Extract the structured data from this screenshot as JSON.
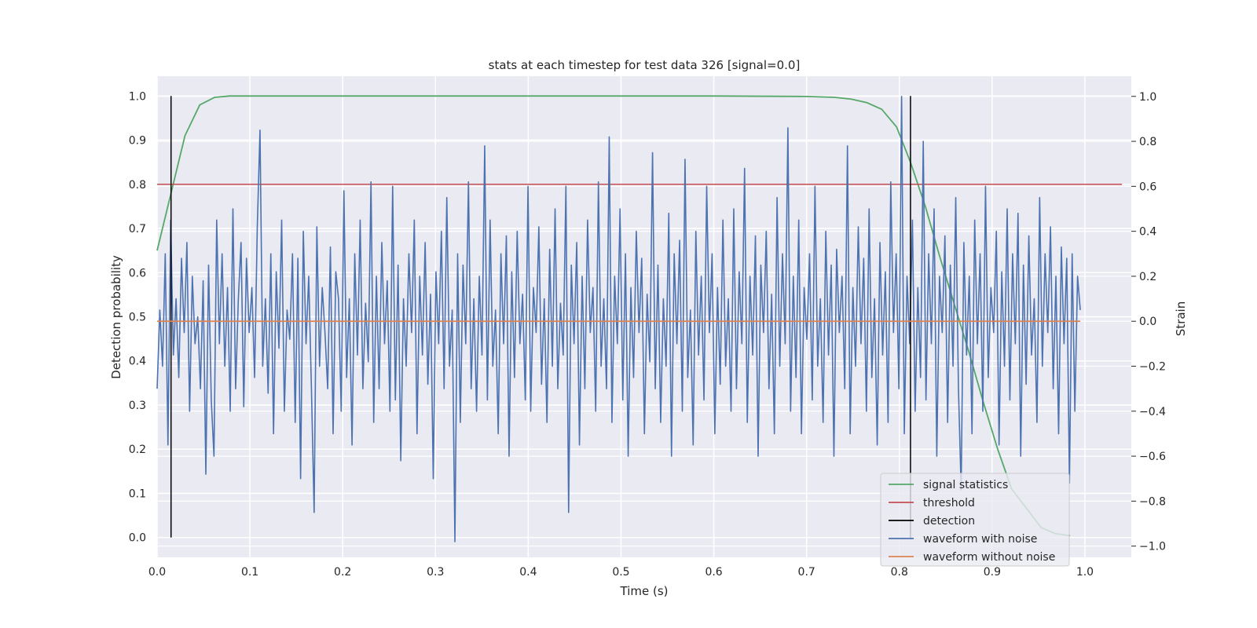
{
  "chart_data": {
    "type": "line",
    "title": "stats at each timestep for test data 326 [signal=0.0]",
    "xlabel": "Time (s)",
    "ylabel": "Detection probability",
    "y2label": "Strain",
    "xlim": [
      0.0,
      1.05
    ],
    "ylim": [
      -0.045,
      1.045
    ],
    "y2lim": [
      -1.05,
      1.09
    ],
    "xticks": [
      "0.0",
      "0.1",
      "0.2",
      "0.3",
      "0.4",
      "0.5",
      "0.6",
      "0.7",
      "0.8",
      "0.9",
      "1.0"
    ],
    "yticks": [
      "0.0",
      "0.1",
      "0.2",
      "0.3",
      "0.4",
      "0.5",
      "0.6",
      "0.7",
      "0.8",
      "0.9",
      "1.0"
    ],
    "y2ticks": [
      "−1.0",
      "−0.8",
      "−0.6",
      "−0.4",
      "−0.2",
      "0.0",
      "0.2",
      "0.4",
      "0.6",
      "0.8",
      "1.0"
    ],
    "grid": true,
    "legend_position": "lower right",
    "series": [
      {
        "name": "signal statistics",
        "color": "#55a868",
        "axis": "left",
        "x": [
          0.0,
          0.015,
          0.03,
          0.046,
          0.062,
          0.078,
          0.1,
          0.2,
          0.3,
          0.4,
          0.5,
          0.6,
          0.7,
          0.73,
          0.748,
          0.765,
          0.781,
          0.797,
          0.812,
          0.828,
          0.843,
          0.859,
          0.875,
          0.89,
          0.906,
          0.921,
          0.937,
          0.953,
          0.968,
          0.984
        ],
        "y": [
          0.65,
          0.78,
          0.91,
          0.98,
          0.997,
          1.0,
          1.0,
          1.0,
          1.0,
          1.0,
          1.0,
          1.0,
          0.999,
          0.997,
          0.993,
          0.985,
          0.97,
          0.93,
          0.85,
          0.75,
          0.64,
          0.53,
          0.42,
          0.31,
          0.2,
          0.11,
          0.066,
          0.022,
          0.009,
          0.004
        ]
      },
      {
        "name": "threshold",
        "color": "#c44e52",
        "axis": "left",
        "x": [
          0.0,
          1.04
        ],
        "y": [
          0.8,
          0.8
        ]
      },
      {
        "name": "detection",
        "color": "#000000",
        "axis": "left",
        "segments": [
          {
            "x": 0.015,
            "y": [
              0.0,
              1.0
            ]
          },
          {
            "x": 0.812,
            "y": [
              0.0,
              1.0
            ]
          }
        ]
      },
      {
        "name": "waveform with noise",
        "color": "#4c72b0",
        "axis": "right",
        "x_range": [
          0.0,
          0.995
        ],
        "y": [
          -0.3,
          0.05,
          -0.2,
          0.3,
          -0.55,
          0.45,
          -0.15,
          0.1,
          -0.25,
          0.28,
          -0.05,
          0.35,
          -0.4,
          0.2,
          -0.1,
          0.02,
          -0.3,
          0.18,
          -0.68,
          0.25,
          -0.35,
          -0.6,
          0.45,
          -0.1,
          0.3,
          -0.2,
          0.15,
          -0.4,
          0.5,
          -0.3,
          0.1,
          0.35,
          -0.38,
          0.28,
          -0.05,
          0.15,
          -0.25,
          0.42,
          0.85,
          -0.2,
          0.1,
          -0.32,
          0.3,
          -0.5,
          0.22,
          -0.12,
          0.45,
          -0.4,
          0.05,
          -0.08,
          0.3,
          -0.45,
          0.28,
          -0.7,
          0.4,
          -0.1,
          0.2,
          -0.3,
          -0.85,
          0.42,
          -0.2,
          0.15,
          -0.05,
          -0.3,
          0.33,
          -0.5,
          0.22,
          0.1,
          -0.4,
          0.58,
          -0.25,
          0.1,
          -0.55,
          0.3,
          -0.15,
          0.45,
          -0.3,
          0.08,
          -0.18,
          0.62,
          -0.45,
          0.2,
          -0.3,
          0.35,
          -0.1,
          0.18,
          -0.4,
          0.6,
          -0.35,
          0.25,
          -0.62,
          0.1,
          -0.2,
          0.3,
          -0.05,
          0.45,
          -0.5,
          0.2,
          -0.15,
          0.35,
          -0.28,
          0.12,
          -0.7,
          0.22,
          -0.1,
          0.4,
          -0.3,
          0.55,
          -0.2,
          0.05,
          -0.98,
          0.3,
          -0.45,
          0.25,
          -0.1,
          0.62,
          -0.3,
          0.1,
          -0.4,
          0.2,
          -0.15,
          0.78,
          -0.35,
          0.45,
          -0.2,
          0.05,
          -0.5,
          0.3,
          -0.1,
          0.38,
          -0.6,
          0.22,
          -0.25,
          0.4,
          -0.1,
          0.12,
          -0.35,
          0.6,
          -0.4,
          0.15,
          -0.05,
          0.42,
          -0.28,
          0.1,
          -0.45,
          0.32,
          -0.2,
          0.5,
          -0.3,
          0.08,
          -0.15,
          0.6,
          -0.85,
          0.25,
          -0.1,
          0.35,
          -0.55,
          0.2,
          -0.3,
          0.45,
          -0.05,
          0.15,
          -0.4,
          0.62,
          -0.2,
          0.1,
          -0.3,
          0.82,
          -0.45,
          0.2,
          -0.1,
          0.5,
          -0.35,
          0.3,
          -0.6,
          0.15,
          -0.25,
          0.4,
          -0.05,
          0.28,
          -0.5,
          0.12,
          -0.18,
          0.75,
          -0.3,
          0.25,
          -0.45,
          0.1,
          -0.2,
          0.48,
          -0.6,
          0.3,
          -0.1,
          0.36,
          -0.4,
          0.72,
          -0.25,
          0.05,
          -0.55,
          0.4,
          -0.15,
          0.2,
          -0.35,
          0.6,
          -0.05,
          0.3,
          -0.5,
          0.15,
          -0.28,
          0.45,
          -0.2,
          0.1,
          -0.4,
          0.5,
          -0.3,
          0.22,
          -0.1,
          0.68,
          -0.45,
          0.2,
          -0.15,
          0.38,
          -0.6,
          0.25,
          -0.05,
          0.4,
          -0.3,
          0.12,
          -0.5,
          0.55,
          -0.2,
          0.3,
          -0.1,
          0.86,
          -0.4,
          0.2,
          -0.25,
          0.45,
          -0.5,
          0.15,
          -0.08,
          0.3,
          -0.35,
          0.6,
          -0.2,
          0.1,
          -0.45,
          0.4,
          -0.15,
          0.25,
          -0.6,
          0.32,
          -0.05,
          0.2,
          -0.3,
          0.78,
          -0.5,
          0.15,
          -0.2,
          0.42,
          -0.1,
          0.28,
          -0.4,
          0.5,
          -0.25,
          0.1,
          -0.55,
          0.35,
          -0.15,
          0.22,
          -0.45,
          0.62,
          -0.05,
          0.3,
          -0.3,
          1.0,
          -0.5,
          0.2,
          -0.1,
          0.45,
          -0.4,
          0.15,
          -0.25,
          0.8,
          -0.35,
          0.3,
          -0.1,
          0.5,
          -0.6,
          0.2,
          -0.05,
          0.38,
          -0.45,
          0.25,
          -0.2,
          0.55,
          -0.3,
          -0.75,
          0.35,
          -0.15,
          0.2,
          -0.5,
          0.45,
          -0.1,
          0.3,
          -0.4,
          0.6,
          -0.25,
          0.15,
          -0.05,
          0.4,
          -0.55,
          0.22,
          -0.2,
          0.5,
          -0.35,
          0.3,
          -0.1,
          0.48,
          -0.6,
          0.25,
          -0.28,
          0.38,
          -0.15,
          0.1,
          -0.45,
          0.55,
          -0.2,
          0.3,
          -0.05,
          0.42,
          -0.3,
          0.2,
          -0.5,
          0.33,
          -0.1,
          0.28,
          -0.72,
          0.3,
          -0.4,
          0.2,
          0.05
        ]
      },
      {
        "name": "waveform without noise",
        "color": "#dd8452",
        "axis": "right",
        "x": [
          0.0,
          0.995
        ],
        "y": [
          0.0,
          0.0
        ]
      }
    ]
  }
}
